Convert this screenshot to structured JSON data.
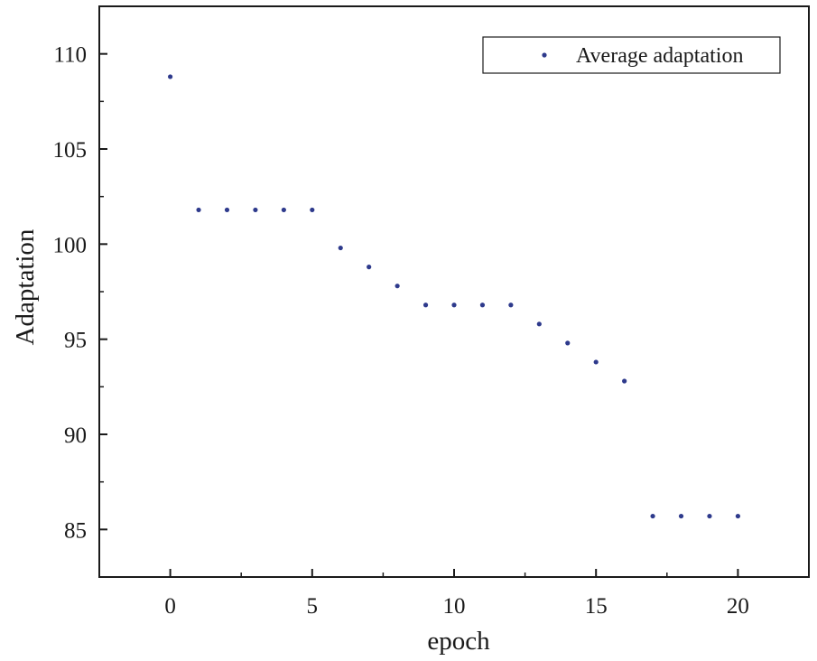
{
  "chart_data": {
    "type": "scatter",
    "title": "",
    "xlabel": "epoch",
    "ylabel": "Adaptation",
    "xlim": [
      -2.5,
      22.5
    ],
    "ylim": [
      82.5,
      112.5
    ],
    "xticks": [
      0,
      5,
      10,
      15,
      20
    ],
    "yticks": [
      85,
      90,
      95,
      100,
      105,
      110
    ],
    "xtick_labels": [
      "0",
      "5",
      "10",
      "15",
      "20"
    ],
    "ytick_labels": [
      "85",
      "90",
      "95",
      "100",
      "105",
      "110"
    ],
    "grid": false,
    "legend_position": "top-right",
    "series": [
      {
        "name": "Average adaptation",
        "color": "#2e3a8c",
        "marker": "dot",
        "x": [
          0,
          1,
          2,
          3,
          4,
          5,
          6,
          7,
          8,
          9,
          10,
          11,
          12,
          13,
          14,
          15,
          16,
          17,
          18,
          19,
          20
        ],
        "y": [
          108.8,
          101.8,
          101.8,
          101.8,
          101.8,
          101.8,
          99.8,
          98.8,
          97.8,
          96.8,
          96.8,
          96.8,
          96.8,
          95.8,
          94.8,
          93.8,
          92.8,
          85.7,
          85.7,
          85.7,
          85.7
        ]
      }
    ]
  }
}
